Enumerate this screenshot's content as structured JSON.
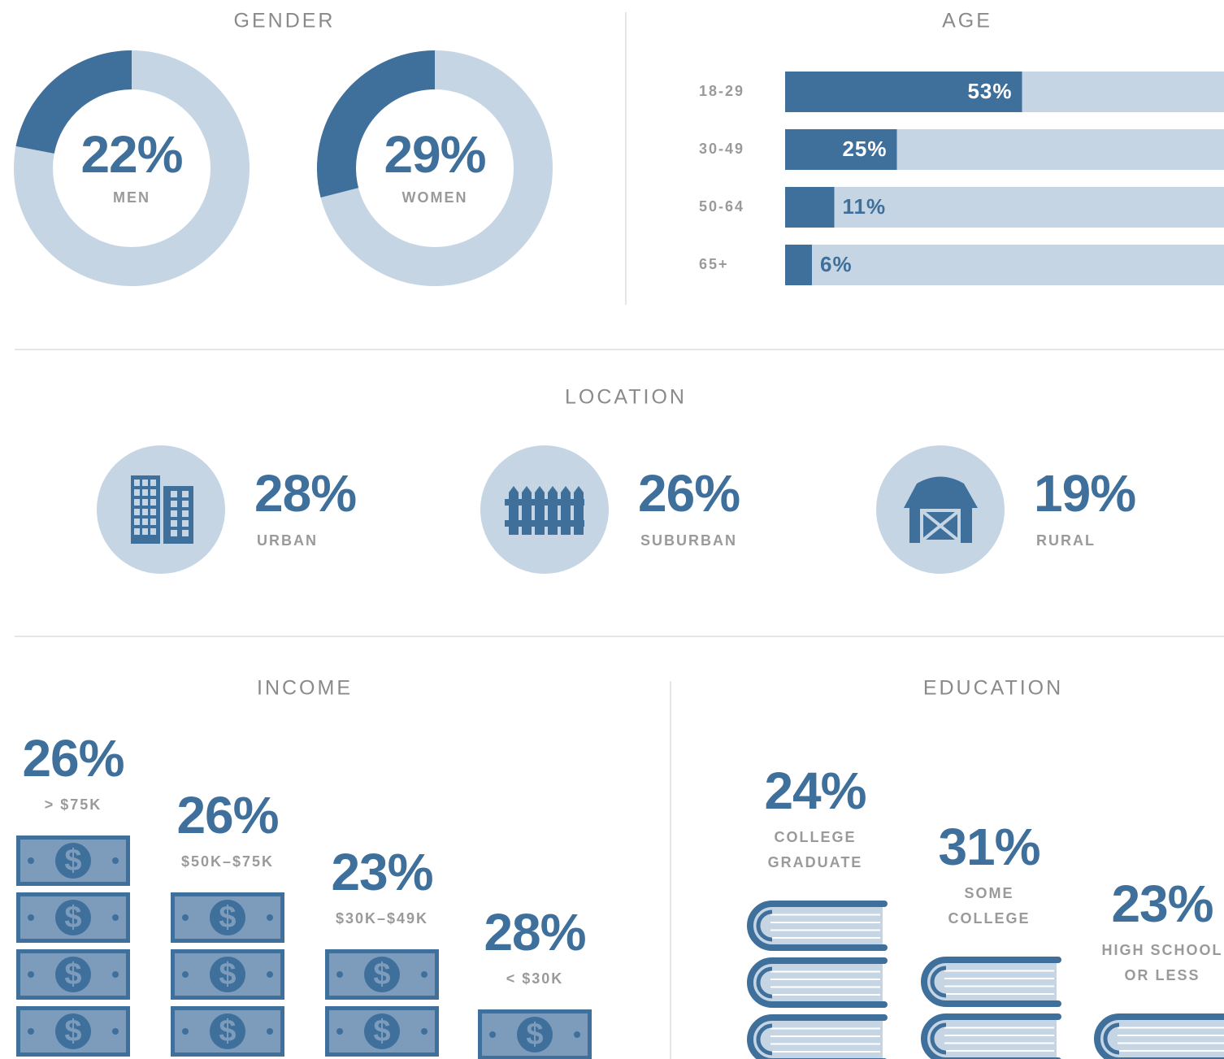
{
  "chart_data": [
    {
      "type": "donut",
      "title": "GENDER",
      "categories": [
        "MEN",
        "WOMEN"
      ],
      "values": [
        22,
        29
      ],
      "value_labels": [
        "22%",
        "29%"
      ],
      "color": "#3f6f9b",
      "track_color": "#c5d5e4"
    },
    {
      "type": "bar",
      "orientation": "horizontal",
      "title": "AGE",
      "categories": [
        "18-29",
        "30-49",
        "50-64",
        "65+"
      ],
      "values": [
        53,
        25,
        11,
        6
      ],
      "value_labels": [
        "53%",
        "25%",
        "11%",
        "6%"
      ],
      "xlim": [
        0,
        100
      ],
      "color": "#3f6f9b",
      "track_color": "#c5d5e4"
    },
    {
      "type": "icon-stat",
      "title": "LOCATION",
      "categories": [
        "URBAN",
        "SUBURBAN",
        "RURAL"
      ],
      "values": [
        28,
        26,
        19
      ],
      "value_labels": [
        "28%",
        "26%",
        "19%"
      ],
      "color": "#3f6f9b",
      "track_color": "#c5d5e4"
    },
    {
      "type": "pictograph",
      "title": "INCOME",
      "categories": [
        [
          "> $75K"
        ],
        [
          "$50K–$75K"
        ],
        [
          "$30K–$49K"
        ],
        [
          "< $30K"
        ]
      ],
      "values": [
        26,
        26,
        23,
        28
      ],
      "value_labels": [
        "26%",
        "26%",
        "23%",
        "28%"
      ],
      "color": "#3f6f9b",
      "track_color": "#c5d5e4"
    },
    {
      "type": "pictograph",
      "title": "EDUCATION",
      "categories": [
        [
          "COLLEGE",
          "GRADUATE"
        ],
        [
          "SOME",
          "COLLEGE"
        ],
        [
          "HIGH SCHOOL",
          "OR LESS"
        ]
      ],
      "values": [
        24,
        31,
        23
      ],
      "value_labels": [
        "24%",
        "31%",
        "23%"
      ],
      "color": "#3f6f9b",
      "track_color": "#c5d5e4"
    }
  ]
}
